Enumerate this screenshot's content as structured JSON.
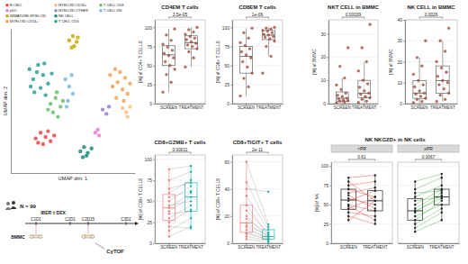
{
  "chart_data": [
    {
      "type": "scatter",
      "xlabel": "UMAP dim. 1",
      "ylabel": "UMAP dim. 2",
      "xlim": [
        0,
        10
      ],
      "ylim": [
        0,
        10
      ],
      "tick_labels": false,
      "legend": "top",
      "series": [
        {
          "name": "B CELL",
          "color": "#e8474c",
          "x": [
            2.0,
            2.4,
            2.8,
            3.2,
            2.6,
            3.0,
            2.2,
            3.5
          ],
          "values": [
            2.4,
            2.8,
            2.5,
            2.2,
            2.0,
            2.9,
            2.1,
            2.6
          ]
        },
        {
          "name": "pDC",
          "color": "#e87bd0",
          "x": [
            6.8,
            7.0,
            7.1
          ],
          "values": [
            2.8,
            3.0,
            2.6
          ]
        },
        {
          "name": "IMMATURE MYELOID",
          "color": "#c8a800",
          "x": [
            4.7,
            5.0,
            5.3,
            5.1,
            4.9,
            5.4
          ],
          "values": [
            9.2,
            9.5,
            9.1,
            8.8,
            8.7,
            9.4
          ]
        },
        {
          "name": "MYELOID CD14+",
          "color": "#f4a259",
          "x": [
            8.0,
            8.4,
            8.8,
            9.2,
            9.6,
            8.2,
            8.6,
            9.0,
            9.4,
            8.5,
            9.1
          ],
          "values": [
            6.8,
            7.2,
            7.0,
            6.6,
            6.2,
            6.0,
            6.3,
            5.8,
            5.5,
            5.2,
            5.0
          ]
        },
        {
          "name": "MYELOID CD16+",
          "color": "#f7c08a",
          "x": [
            9.0,
            9.3,
            9.6,
            9.4
          ],
          "values": [
            4.5,
            4.2,
            4.6,
            3.9
          ]
        },
        {
          "name": "MYELOID OTHER",
          "color": "#9b7fd4",
          "x": [
            7.4,
            7.7,
            7.9
          ],
          "values": [
            4.4,
            4.1,
            4.6
          ]
        },
        {
          "name": "NK CELL",
          "color": "#1b8a7a",
          "x": [
            5.6,
            5.9,
            6.2,
            6.5,
            5.8,
            6.1
          ],
          "values": [
            1.5,
            1.8,
            1.4,
            1.7,
            1.1,
            1.2
          ]
        },
        {
          "name": "T CELL CD4",
          "color": "#2aa198",
          "x": [
            1.5,
            1.8,
            2.2,
            2.6,
            3.0,
            1.9,
            2.4,
            2.8,
            3.3,
            1.6,
            2.1,
            2.7
          ],
          "values": [
            7.2,
            6.5,
            7.5,
            6.8,
            6.2,
            5.6,
            5.9,
            5.4,
            6.9,
            6.0,
            7.0,
            7.6
          ]
        },
        {
          "name": "T CELL CD8",
          "color": "#6abf69",
          "x": [
            3.2,
            3.6,
            4.0,
            3.4,
            3.8,
            4.2,
            3.0,
            3.7
          ],
          "values": [
            4.8,
            5.2,
            4.6,
            4.2,
            3.9,
            5.0,
            4.4,
            5.6
          ]
        },
        {
          "name": "T CELL DN",
          "color": "#7fb8e0",
          "x": [
            4.4,
            4.7,
            5.0,
            4.6,
            4.9,
            4.5
          ],
          "values": [
            6.5,
            6.0,
            5.5,
            5.0,
            6.8,
            4.6
          ]
        }
      ]
    },
    {
      "type": "box",
      "title": "CD4EM T cells",
      "ylabel": "[%] of CD4+ T CELLS",
      "pvalue": "3.5e-05",
      "categories": [
        "SCREEN",
        "TREATMENT"
      ],
      "ylim": [
        0,
        110
      ],
      "yticks": [
        0,
        25,
        50,
        75,
        100
      ],
      "grid": true,
      "color": "#b5533c",
      "boxes": [
        {
          "low": 15,
          "q1": 50,
          "median": 64,
          "q3": 76,
          "high": 98
        },
        {
          "low": 48,
          "q1": 72,
          "median": 80,
          "q3": 89,
          "high": 100
        }
      ],
      "points": [
        [
          15,
          28,
          38,
          45,
          50,
          55,
          60,
          63,
          66,
          70,
          74,
          78,
          83,
          90,
          98
        ],
        [
          48,
          60,
          68,
          72,
          75,
          77,
          79,
          81,
          84,
          86,
          88,
          91,
          94,
          97,
          100
        ]
      ]
    },
    {
      "type": "box",
      "title": "CD8EM T cells",
      "ylabel": "[%] of CD8+ T CELLS",
      "pvalue": "1e-06",
      "categories": [
        "SCREEN",
        "TREATMENT"
      ],
      "ylim": [
        0,
        110
      ],
      "yticks": [
        0,
        25,
        50,
        75,
        100
      ],
      "grid": true,
      "color": "#b5533c",
      "boxes": [
        {
          "low": 10,
          "q1": 40,
          "median": 62,
          "q3": 75,
          "high": 99
        },
        {
          "low": 62,
          "q1": 84,
          "median": 90,
          "q3": 96,
          "high": 100
        }
      ],
      "points": [
        [
          10,
          22,
          33,
          40,
          48,
          55,
          60,
          64,
          68,
          72,
          76,
          80,
          86,
          93,
          99
        ],
        [
          40,
          62,
          75,
          82,
          85,
          87,
          88,
          90,
          91,
          93,
          95,
          96,
          98,
          99,
          100
        ]
      ]
    },
    {
      "type": "box",
      "title": "NKT CELL in BMMC",
      "ylabel": "[%] of BMMC",
      "pvalue": "0.00039",
      "categories": [
        "SCREEN",
        "TREATMENT"
      ],
      "ylim": [
        0,
        36
      ],
      "yticks": [
        0,
        10,
        20,
        30
      ],
      "grid": true,
      "color": "#b5533c",
      "boxes": [
        {
          "low": 0.3,
          "q1": 1.1,
          "median": 2.3,
          "q3": 5,
          "high": 11
        },
        {
          "low": 0.5,
          "q1": 2.5,
          "median": 4.5,
          "q3": 10,
          "high": 18
        }
      ],
      "points": [
        [
          0.3,
          0.6,
          1,
          1.2,
          1.5,
          2,
          2.3,
          3,
          3.5,
          4.5,
          6,
          8,
          11,
          16,
          24
        ],
        [
          0.5,
          1,
          1.8,
          2.5,
          3,
          4,
          4.5,
          5.5,
          7,
          8.5,
          10,
          14,
          18,
          24,
          34
        ]
      ]
    },
    {
      "type": "box",
      "title": "NK CELL in BMMC",
      "ylabel": "[%] of BMMC",
      "pvalue": "0.0026",
      "categories": [
        "SCREEN",
        "TREATMENT"
      ],
      "ylim": [
        0,
        40
      ],
      "yticks": [
        0,
        10,
        20,
        30,
        40
      ],
      "grid": true,
      "color": "#b5533c",
      "boxes": [
        {
          "low": 0.5,
          "q1": 2.5,
          "median": 5,
          "q3": 11,
          "high": 22
        },
        {
          "low": 1,
          "q1": 5,
          "median": 11,
          "q3": 18,
          "high": 30
        }
      ],
      "points": [
        [
          0.5,
          1,
          2,
          2.5,
          3.5,
          4.5,
          5,
          6,
          8,
          9,
          11,
          14,
          18,
          22,
          30
        ],
        [
          1,
          2,
          4,
          5,
          7,
          9,
          10,
          11,
          13,
          15,
          17,
          20,
          25,
          30,
          36
        ]
      ]
    },
    {
      "type": "paired",
      "title": "CD8+GZMB+ T cells",
      "ylabel": "[%] of CD8+ T CELLS",
      "categories": [
        "SCREEN",
        "TREATMENT"
      ],
      "ylim": [
        0,
        105
      ],
      "yticks": [
        0,
        25,
        50,
        75,
        100
      ],
      "grid": true,
      "colors": [
        "#f07f7f",
        "#27b5ad"
      ],
      "color": "#a0a0a0",
      "facets": [
        {
          "pvalue": "0.00011",
          "boxes": [
            {
              "low": 8,
              "q1": 27,
              "median": 42,
              "q3": 58,
              "high": 88
            },
            {
              "low": 18,
              "q1": 38,
              "median": 55,
              "q3": 72,
              "high": 92
            }
          ],
          "series": [
            {
              "values": [
                8,
                20
              ]
            },
            {
              "values": [
                15,
                30
              ]
            },
            {
              "values": [
                20,
                18
              ]
            },
            {
              "values": [
                25,
                40
              ]
            },
            {
              "values": [
                30,
                45
              ]
            },
            {
              "values": [
                35,
                38
              ]
            },
            {
              "values": [
                38,
                55
              ]
            },
            {
              "values": [
                42,
                60
              ]
            },
            {
              "values": [
                45,
                50
              ]
            },
            {
              "values": [
                50,
                68
              ]
            },
            {
              "values": [
                55,
                62
              ]
            },
            {
              "values": [
                60,
                75
              ]
            },
            {
              "values": [
                65,
                72
              ]
            },
            {
              "values": [
                75,
                85
              ]
            },
            {
              "values": [
                88,
                92
              ]
            }
          ]
        }
      ]
    },
    {
      "type": "paired",
      "title": "CD8+TIGIT+ T cells",
      "ylabel": "[%] of CD8+ T CELLS",
      "categories": [
        "SCREEN",
        "TREATMENT"
      ],
      "ylim": [
        0,
        65
      ],
      "yticks": [
        0,
        20,
        40,
        60
      ],
      "grid": true,
      "colors": [
        "#f07f7f",
        "#27b5ad"
      ],
      "color": "#a0a0a0",
      "facets": [
        {
          "pvalue": "2e-11",
          "boxes": [
            {
              "low": 3,
              "q1": 8,
              "median": 15,
              "q3": 28,
              "high": 60
            },
            {
              "low": 1,
              "q1": 3,
              "median": 5,
              "q3": 10,
              "high": 14
            }
          ],
          "series": [
            {
              "values": [
                3,
                1
              ]
            },
            {
              "values": [
                5,
                2
              ]
            },
            {
              "values": [
                7,
                3
              ]
            },
            {
              "values": [
                8,
                2.5
              ]
            },
            {
              "values": [
                10,
                4
              ]
            },
            {
              "values": [
                12,
                3
              ]
            },
            {
              "values": [
                13,
                6
              ]
            },
            {
              "values": [
                15,
                5
              ]
            },
            {
              "values": [
                18,
                7
              ]
            },
            {
              "values": [
                20,
                4
              ]
            },
            {
              "values": [
                24,
                8
              ]
            },
            {
              "values": [
                28,
                6
              ]
            },
            {
              "values": [
                35,
                10
              ]
            },
            {
              "values": [
                40,
                38
              ]
            },
            {
              "values": [
                45,
                12
              ]
            },
            {
              "values": [
                60,
                14
              ]
            }
          ]
        }
      ]
    },
    {
      "type": "paired",
      "title": "NK NKG2D+ in NK cells",
      "ylabel": "[%] of NK",
      "categories": [
        "SCREEN",
        "TREATMENT"
      ],
      "ylim": [
        0,
        105
      ],
      "yticks": [
        0,
        25,
        50,
        75,
        100
      ],
      "grid": true,
      "colors": [
        "#222222",
        "#222222"
      ],
      "facets": [
        {
          "label": "<PR",
          "pvalue": "0.61",
          "color": "#e03030",
          "boxes": [
            {
              "low": 30,
              "q1": 44,
              "median": 56,
              "q3": 70,
              "high": 85
            },
            {
              "low": 25,
              "q1": 42,
              "median": 55,
              "q3": 68,
              "high": 88
            }
          ],
          "series": [
            {
              "values": [
                30,
                55
              ]
            },
            {
              "values": [
                40,
                35
              ]
            },
            {
              "values": [
                45,
                60
              ]
            },
            {
              "values": [
                50,
                42
              ]
            },
            {
              "values": [
                55,
                68
              ]
            },
            {
              "values": [
                58,
                50
              ]
            },
            {
              "values": [
                62,
                45
              ]
            },
            {
              "values": [
                65,
                72
              ]
            },
            {
              "values": [
                70,
                60
              ]
            },
            {
              "values": [
                75,
                80
              ]
            },
            {
              "values": [
                80,
                55
              ]
            },
            {
              "values": [
                48,
                30
              ]
            },
            {
              "values": [
                35,
                25
              ]
            },
            {
              "values": [
                85,
                88
              ]
            }
          ]
        },
        {
          "label": "≥PR",
          "pvalue": "0.0067",
          "color": "#3aa63a",
          "boxes": [
            {
              "low": 15,
              "q1": 30,
              "median": 42,
              "q3": 58,
              "high": 80
            },
            {
              "low": 30,
              "q1": 50,
              "median": 60,
              "q3": 70,
              "high": 90
            }
          ],
          "series": [
            {
              "values": [
                15,
                30
              ]
            },
            {
              "values": [
                25,
                45
              ]
            },
            {
              "values": [
                30,
                55
              ]
            },
            {
              "values": [
                35,
                50
              ]
            },
            {
              "values": [
                40,
                62
              ]
            },
            {
              "values": [
                45,
                65
              ]
            },
            {
              "values": [
                50,
                70
              ]
            },
            {
              "values": [
                55,
                60
              ]
            },
            {
              "values": [
                60,
                75
              ]
            },
            {
              "values": [
                65,
                68
              ]
            },
            {
              "values": [
                70,
                85
              ]
            },
            {
              "values": [
                80,
                90
              ]
            },
            {
              "values": [
                20,
                40
              ]
            },
            {
              "values": [
                42,
                58
              ]
            }
          ]
        }
      ]
    }
  ],
  "timeline": {
    "n": "N = 99",
    "treatment": "IBER ± DEX",
    "cycles": [
      "C1D1",
      "C2D1",
      "C2D15",
      "C3D1"
    ],
    "sample": "BMMC",
    "assay": "CyTOF"
  }
}
